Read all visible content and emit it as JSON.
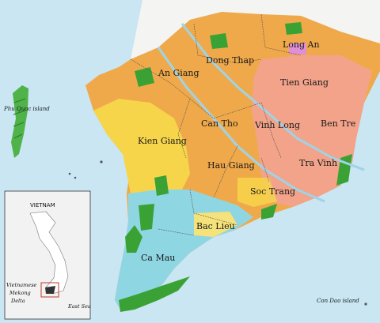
{
  "provinces": [
    {
      "key": "long_an",
      "label": "Long An"
    },
    {
      "key": "dong_thap",
      "label": "Dong Thap"
    },
    {
      "key": "an_giang",
      "label": "An Giang"
    },
    {
      "key": "tien_giang",
      "label": "Tien Giang"
    },
    {
      "key": "can_tho",
      "label": "Can Tho"
    },
    {
      "key": "vinh_long",
      "label": "Vinh Long"
    },
    {
      "key": "ben_tre",
      "label": "Ben Tre"
    },
    {
      "key": "kien_giang",
      "label": "Kien Giang"
    },
    {
      "key": "hau_giang",
      "label": "Hau Giang"
    },
    {
      "key": "tra_vinh",
      "label": "Tra Vinh"
    },
    {
      "key": "soc_trang",
      "label": "Soc Trang"
    },
    {
      "key": "bac_lieu",
      "label": "Bac Lieu"
    },
    {
      "key": "ca_mau",
      "label": "Ca Mau"
    }
  ],
  "islands": {
    "phu_quoc": "Phu Quoc island",
    "con_dao": "Con Dao island"
  },
  "inset": {
    "title": "VIETNAM",
    "region_label": [
      "Vietnamese",
      "Mekong",
      "Delta"
    ],
    "sea_label": "East Sea"
  },
  "colors": {
    "sea": "#c9e6f2",
    "orange": "#f0a94a",
    "salmon": "#f2a38a",
    "yellow": "#f7d54a",
    "green": "#3aa235",
    "cyan": "#8fd6e3",
    "pink": "#e08fd6"
  }
}
